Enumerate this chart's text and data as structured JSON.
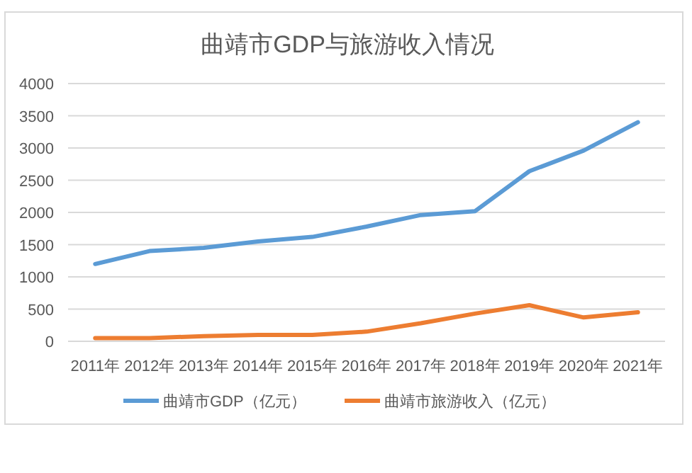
{
  "chart_data": {
    "type": "line",
    "title": "曲靖市GDP与旅游收入情况",
    "categories": [
      "2011年",
      "2012年",
      "2013年",
      "2014年",
      "2015年",
      "2016年",
      "2017年",
      "2018年",
      "2019年",
      "2020年",
      "2021年"
    ],
    "series": [
      {
        "name": "曲靖市GDP（亿元）",
        "color": "#5b9bd5",
        "values": [
          1200,
          1400,
          1450,
          1550,
          1620,
          1780,
          1960,
          2020,
          2640,
          2960,
          3400
        ]
      },
      {
        "name": "曲靖市旅游收入（亿元）",
        "color": "#ed7d31",
        "values": [
          50,
          50,
          80,
          100,
          100,
          150,
          280,
          430,
          560,
          370,
          450
        ]
      }
    ],
    "ylim": [
      0,
      4000
    ],
    "yticks": [
      0,
      500,
      1000,
      1500,
      2000,
      2500,
      3000,
      3500,
      4000
    ],
    "grid": "y",
    "legend": "bottom"
  }
}
